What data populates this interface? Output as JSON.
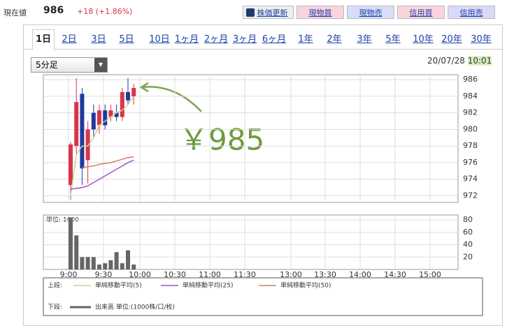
{
  "header": {
    "label": "現在値",
    "price": "986",
    "change": "+18 (+1.86%)"
  },
  "buttons": [
    "株価更新",
    "現物買",
    "現物売",
    "信用買",
    "信用売"
  ],
  "tabs": [
    "1日",
    "2日",
    "3日",
    "5日",
    "10日",
    "1ヶ月",
    "2ヶ月",
    "3ヶ月",
    "6ヶ月",
    "1年",
    "2年",
    "3年",
    "5年",
    "10年",
    "20年",
    "30年"
  ],
  "dropdown": "5分足",
  "date": "20/07/28",
  "time": "10:01",
  "legend": {
    "upper": "上段:",
    "lower": "下段:"
  },
  "chart_data": [
    {
      "type": "candlestick",
      "annotation": "￥985",
      "open": [
        973.3,
        978,
        984.3,
        976.3,
        982,
        980.5,
        982.3,
        981.5,
        982,
        981.5,
        984.5,
        984
      ],
      "high": [
        978.5,
        986.2,
        985,
        981,
        983,
        983,
        983,
        983,
        983,
        985,
        986.2,
        985.5
      ],
      "low": [
        971.5,
        977,
        973.3,
        973.5,
        979,
        979.5,
        980,
        981,
        981,
        981,
        983,
        983
      ],
      "close": [
        978.2,
        983.3,
        975.3,
        980,
        980,
        982.3,
        980.5,
        982.3,
        981.5,
        984.5,
        983.5,
        985
      ],
      "up_color": "#d9344a",
      "down_color": "#1f3a9e",
      "series": [
        {
          "name": "単純移動平均(5)",
          "color": "#c8d48c",
          "values": [
            972,
            977,
            978,
            978,
            979,
            980.5,
            981,
            981.5,
            982,
            982.3,
            983,
            984
          ]
        },
        {
          "name": "単純移動平均(25)",
          "color": "#a452c8",
          "values": [
            972.8,
            972.9,
            973,
            973.2,
            973.6,
            974,
            974.4,
            974.8,
            975.2,
            975.6,
            976,
            976.3
          ]
        },
        {
          "name": "単純移動平均(50)",
          "color": "#d08060",
          "values": [
            null,
            null,
            975.4,
            975.5,
            975.6,
            975.8,
            975.9,
            976,
            976.2,
            976.4,
            976.6,
            976.7
          ]
        }
      ],
      "ylim": [
        971.2,
        986.6
      ],
      "yticks": [
        972,
        974,
        976,
        978,
        980,
        982,
        984,
        986
      ],
      "grid": true
    },
    {
      "type": "bar",
      "unit_label": "単位: 1000",
      "name": "出来高 単位:(1000株/口/枚)",
      "color": "#666666",
      "values": [
        84,
        55,
        20,
        20,
        20,
        8,
        10,
        15,
        28,
        10,
        31,
        8
      ],
      "ylim": [
        0,
        88
      ],
      "yticks": [
        20,
        40,
        60,
        80
      ],
      "grid": true,
      "xticks": [
        "9:00",
        "9:30",
        "10:00",
        "10:30",
        "11:00",
        "11:30",
        "13:00",
        "13:30",
        "14:00",
        "14:30",
        "15:00"
      ]
    }
  ]
}
